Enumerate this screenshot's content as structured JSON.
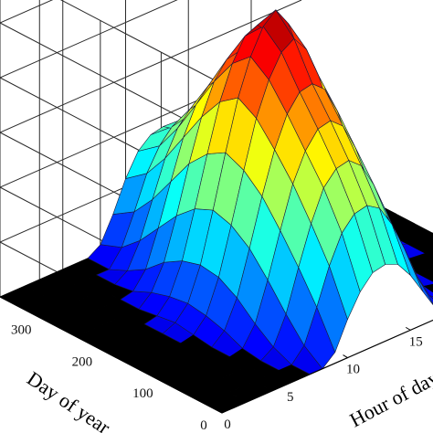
{
  "chart_data": {
    "type": "surface",
    "title": "",
    "xlabel": "Hour of day",
    "ylabel": "Day of year",
    "zlabel": "",
    "x_ticks": [
      0,
      5,
      10,
      15
    ],
    "y_ticks": [
      0,
      100,
      200,
      300
    ],
    "xlim": [
      0,
      24
    ],
    "ylim": [
      0,
      365
    ],
    "grid": true,
    "colormap": "jet",
    "hours": [
      0,
      2,
      4,
      5,
      6,
      7,
      8,
      9,
      10,
      11,
      12,
      13,
      14,
      15,
      16,
      17,
      18,
      19,
      20,
      22,
      24
    ],
    "days": [
      0,
      30,
      60,
      90,
      120,
      150,
      180,
      210,
      240,
      270,
      300,
      330,
      365
    ],
    "z": [
      [
        0,
        0,
        0,
        0,
        0,
        0,
        0,
        0.04,
        0.14,
        0.22,
        0.27,
        0.28,
        0.26,
        0.2,
        0.12,
        0.04,
        0,
        0,
        0,
        0,
        0
      ],
      [
        0,
        0,
        0,
        0,
        0,
        0,
        0.05,
        0.17,
        0.3,
        0.4,
        0.45,
        0.46,
        0.43,
        0.35,
        0.24,
        0.12,
        0.03,
        0,
        0,
        0,
        0
      ],
      [
        0,
        0,
        0,
        0,
        0,
        0.03,
        0.13,
        0.28,
        0.42,
        0.53,
        0.58,
        0.59,
        0.55,
        0.46,
        0.33,
        0.19,
        0.07,
        0.01,
        0,
        0,
        0
      ],
      [
        0,
        0,
        0,
        0,
        0.01,
        0.08,
        0.22,
        0.38,
        0.53,
        0.63,
        0.69,
        0.7,
        0.66,
        0.56,
        0.42,
        0.26,
        0.12,
        0.03,
        0,
        0,
        0
      ],
      [
        0,
        0,
        0,
        0,
        0.04,
        0.14,
        0.3,
        0.47,
        0.62,
        0.73,
        0.79,
        0.8,
        0.76,
        0.66,
        0.51,
        0.34,
        0.18,
        0.06,
        0.01,
        0,
        0
      ],
      [
        0,
        0,
        0,
        0.01,
        0.06,
        0.18,
        0.35,
        0.53,
        0.7,
        0.82,
        0.9,
        0.93,
        0.87,
        0.75,
        0.58,
        0.4,
        0.22,
        0.08,
        0.02,
        0,
        0
      ],
      [
        0,
        0,
        0,
        0.02,
        0.07,
        0.19,
        0.37,
        0.56,
        0.74,
        0.87,
        0.96,
        1.0,
        0.93,
        0.79,
        0.61,
        0.42,
        0.23,
        0.09,
        0.02,
        0,
        0
      ],
      [
        0,
        0,
        0,
        0.01,
        0.06,
        0.17,
        0.34,
        0.52,
        0.69,
        0.81,
        0.89,
        0.91,
        0.86,
        0.74,
        0.57,
        0.39,
        0.21,
        0.08,
        0.01,
        0,
        0
      ],
      [
        0,
        0,
        0,
        0,
        0.04,
        0.13,
        0.28,
        0.45,
        0.6,
        0.71,
        0.77,
        0.78,
        0.74,
        0.64,
        0.49,
        0.33,
        0.17,
        0.05,
        0,
        0,
        0
      ],
      [
        0,
        0,
        0,
        0,
        0.01,
        0.07,
        0.2,
        0.35,
        0.49,
        0.59,
        0.64,
        0.65,
        0.61,
        0.52,
        0.38,
        0.24,
        0.11,
        0.02,
        0,
        0,
        0
      ],
      [
        0,
        0,
        0,
        0,
        0,
        0.03,
        0.12,
        0.25,
        0.38,
        0.47,
        0.52,
        0.53,
        0.49,
        0.41,
        0.29,
        0.16,
        0.05,
        0,
        0,
        0,
        0
      ],
      [
        0,
        0,
        0,
        0,
        0,
        0,
        0.06,
        0.17,
        0.29,
        0.37,
        0.42,
        0.43,
        0.4,
        0.32,
        0.22,
        0.1,
        0.02,
        0,
        0,
        0,
        0
      ],
      [
        0,
        0,
        0,
        0,
        0,
        0,
        0.03,
        0.12,
        0.23,
        0.31,
        0.35,
        0.36,
        0.33,
        0.26,
        0.17,
        0.07,
        0.01,
        0,
        0,
        0,
        0
      ]
    ]
  }
}
